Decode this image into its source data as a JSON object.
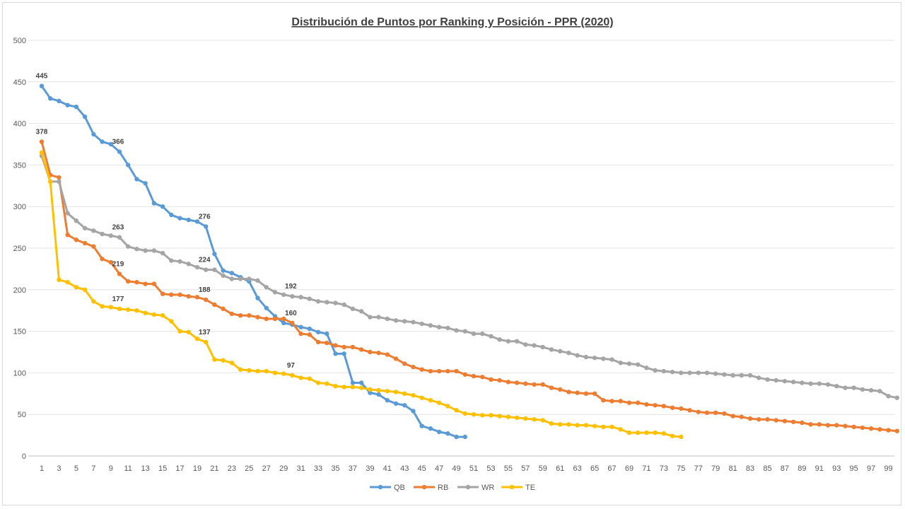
{
  "chart_data": {
    "type": "line",
    "title": "Distribución de Puntos por Ranking y Posición - PPR (2020)",
    "xlabel": "",
    "ylabel": "",
    "ylim": [
      0,
      500
    ],
    "yticks": [
      0,
      50,
      100,
      150,
      200,
      250,
      300,
      350,
      400,
      450,
      500
    ],
    "xlim": [
      1,
      100
    ],
    "xtick_step": 2,
    "grid": true,
    "legend": "bottom",
    "series": [
      {
        "name": "QB",
        "color": "#5b9bd5",
        "values": [
          445,
          430,
          427,
          422,
          420,
          408,
          387,
          378,
          375,
          366,
          350,
          333,
          328,
          304,
          300,
          290,
          286,
          284,
          282,
          276,
          243,
          223,
          220,
          215,
          210,
          190,
          178,
          168,
          160,
          158,
          155,
          153,
          149,
          147,
          123,
          123,
          88,
          88,
          76,
          74,
          67,
          63,
          61,
          54,
          36,
          33,
          29,
          27,
          23,
          23
        ],
        "labels_at": [
          1,
          10,
          20
        ]
      },
      {
        "name": "RB",
        "color": "#ed7d31",
        "values": [
          378,
          338,
          335,
          266,
          260,
          256,
          252,
          237,
          233,
          219,
          210,
          209,
          207,
          207,
          195,
          194,
          194,
          192,
          191,
          188,
          182,
          177,
          171,
          169,
          169,
          167,
          165,
          165,
          165,
          160,
          147,
          146,
          137,
          136,
          133,
          131,
          131,
          128,
          125,
          124,
          122,
          117,
          111,
          107,
          104,
          102,
          102,
          102,
          102,
          98,
          96,
          95,
          92,
          91,
          89,
          88,
          87,
          86,
          86,
          82,
          80,
          77,
          76,
          75,
          75,
          67,
          66,
          66,
          64,
          64,
          62,
          61,
          60,
          58,
          57,
          55,
          53,
          52,
          52,
          51,
          48,
          47,
          45,
          44,
          44,
          43,
          42,
          41,
          40,
          38,
          38,
          37,
          37,
          36,
          35,
          34,
          33,
          32,
          31,
          30
        ],
        "labels_at": [
          1,
          10,
          20,
          30
        ]
      },
      {
        "name": "WR",
        "color": "#a5a5a5",
        "values": [
          361,
          330,
          330,
          292,
          283,
          274,
          271,
          267,
          265,
          263,
          252,
          249,
          247,
          247,
          244,
          235,
          234,
          231,
          227,
          224,
          224,
          217,
          213,
          213,
          213,
          211,
          203,
          197,
          194,
          192,
          191,
          189,
          186,
          185,
          184,
          182,
          177,
          174,
          167,
          167,
          165,
          163,
          162,
          161,
          159,
          157,
          155,
          154,
          151,
          150,
          147,
          147,
          144,
          140,
          138,
          138,
          134,
          133,
          131,
          128,
          126,
          124,
          121,
          119,
          118,
          117,
          116,
          112,
          111,
          110,
          106,
          103,
          102,
          101,
          100,
          100,
          100,
          100,
          99,
          98,
          97,
          97,
          97,
          94,
          92,
          91,
          90,
          89,
          88,
          87,
          87,
          86,
          84,
          82,
          82,
          80,
          79,
          78,
          72,
          70
        ],
        "labels_at": [
          10,
          20,
          30
        ]
      },
      {
        "name": "TE",
        "color": "#ffc000",
        "values": [
          365,
          330,
          212,
          209,
          203,
          200,
          186,
          180,
          179,
          177,
          176,
          175,
          172,
          170,
          169,
          162,
          150,
          149,
          141,
          137,
          116,
          115,
          112,
          104,
          103,
          102,
          102,
          100,
          99,
          97,
          94,
          93,
          88,
          87,
          84,
          83,
          83,
          82,
          80,
          79,
          78,
          77,
          75,
          73,
          70,
          67,
          64,
          60,
          55,
          51,
          50,
          49,
          49,
          48,
          47,
          46,
          45,
          44,
          43,
          39,
          38,
          38,
          37,
          37,
          36,
          35,
          35,
          32,
          28,
          28,
          28,
          28,
          27,
          24,
          23
        ],
        "labels_at": [
          10,
          20,
          30
        ]
      }
    ]
  }
}
